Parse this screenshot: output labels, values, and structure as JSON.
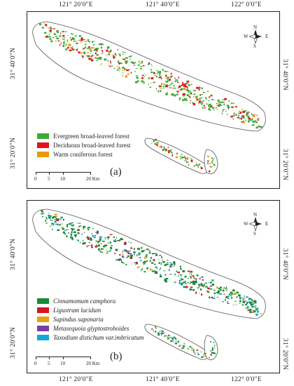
{
  "coordinates": {
    "top": [
      "121° 20′0″E",
      "121° 40′0″E",
      "122° 0′0″E"
    ],
    "bottom": [
      "121° 20′0″E",
      "121° 40′0″E",
      "122° 0′0″E"
    ],
    "left": [
      "31° 40′0″N",
      "31° 20′0″N",
      "31° 40′0″N",
      "31° 20′0″N"
    ],
    "right": [
      "31° 40′0″N",
      "31° 20′0″N",
      "31° 40′0″N",
      "31° 20′0″N"
    ]
  },
  "compass": {
    "n": "N",
    "s": "S",
    "e": "E",
    "w": "W",
    "icon": "north-arrow-icon"
  },
  "scalebar": {
    "labels": [
      "0",
      "5",
      "10",
      "20 Km"
    ]
  },
  "panel_a": {
    "label": "(a)",
    "legend": [
      {
        "label": "Evergreen broad-leaved forest",
        "color": "#3daa35"
      },
      {
        "label": "Deciduous broad-leaved forest",
        "color": "#e8101e"
      },
      {
        "label": "Warm coniferous forest",
        "color": "#e69a06"
      }
    ]
  },
  "panel_b": {
    "label": "(b)",
    "legend": [
      {
        "label": "Cinnamomum camphora",
        "color": "#168a3a"
      },
      {
        "label": "Ligustrum lucidum",
        "color": "#d7151f"
      },
      {
        "label": "Sapindus saponaria",
        "color": "#e8a010"
      },
      {
        "label": "Metasequoia glyptostroboides",
        "color": "#7a3ea0"
      },
      {
        "label": "Taxodium distichum var.imbricatum",
        "color": "#14a8d6"
      }
    ]
  }
}
